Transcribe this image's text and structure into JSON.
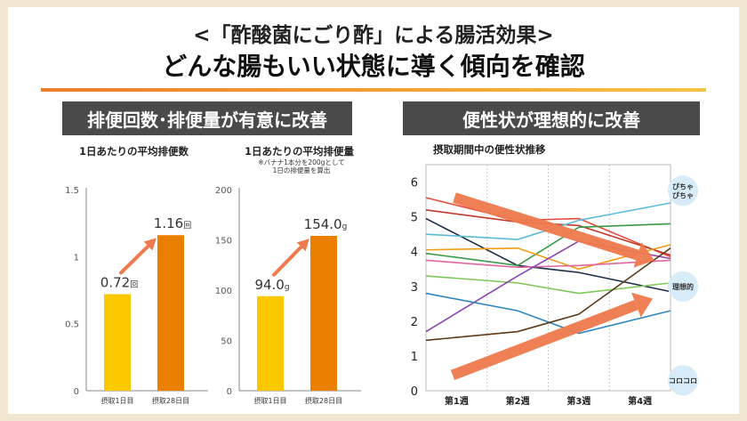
{
  "header": {
    "title_line1": "<「酢酸菌にごり酢」による腸活効果>",
    "title_line2": "どんな腸もいい状態に導く傾向を確認"
  },
  "sections": {
    "left": "排便回数･排便量が有意に改善",
    "right": "便性状が理想的に改善"
  },
  "colors": {
    "bar_day1": "#fcc800",
    "bar_day28": "#eb7f00",
    "arrow": "#ef7a4d",
    "header_bg": "#4a4a4a"
  },
  "chart_data": [
    {
      "type": "bar",
      "title": "1日あたりの平均排便数",
      "categories": [
        "摂取1日目",
        "摂取28日目"
      ],
      "values": [
        0.72,
        1.16
      ],
      "value_labels": [
        "0.72",
        "1.16"
      ],
      "unit": "回",
      "ylim": [
        0,
        1.5
      ],
      "yticks": [
        0,
        0.5,
        1,
        1.5
      ],
      "ytick_labels": [
        "0",
        "0.5",
        "1",
        "1.5"
      ]
    },
    {
      "type": "bar",
      "title": "1日あたりの平均排便量",
      "note_lines": [
        "※バナナ1本分を200gとして",
        "1日の排便量を算出"
      ],
      "categories": [
        "摂取1日目",
        "摂取28日目"
      ],
      "values": [
        94.0,
        154.0
      ],
      "value_labels": [
        "94.0",
        "154.0"
      ],
      "unit": "g",
      "ylim": [
        0,
        200
      ],
      "yticks": [
        0,
        50,
        100,
        150,
        200
      ],
      "ytick_labels": [
        "0",
        "50",
        "100",
        "150",
        "200"
      ]
    },
    {
      "type": "line",
      "title": "摂取期間中の便性状推移",
      "categories": [
        "第1週",
        "第2週",
        "第3週",
        "第4週"
      ],
      "ylim": [
        0,
        6.5
      ],
      "yticks": [
        0,
        1,
        2,
        3,
        4,
        5,
        6
      ],
      "ytick_labels": [
        "0",
        "1",
        "2",
        "3",
        "4",
        "5",
        "6"
      ],
      "grid": "vertical",
      "zone_labels": [
        {
          "text": "ぴちゃぴちゃ",
          "lines": [
            "ぴちゃ",
            "ぴちゃ"
          ],
          "y": 5.75
        },
        {
          "text": "理想的",
          "lines": [
            "理想的"
          ],
          "y": 3.0
        },
        {
          "text": "コロコロ",
          "lines": [
            "コロコロ"
          ],
          "y": 0.3
        }
      ],
      "series": [
        {
          "color": "#e8493a",
          "values": [
            5.55,
            4.9,
            4.95,
            3.85
          ]
        },
        {
          "color": "#c0392b",
          "values": [
            5.2,
            4.85,
            4.75,
            3.9
          ]
        },
        {
          "color": "#1c2e4a",
          "values": [
            4.95,
            3.6,
            3.4,
            2.85
          ]
        },
        {
          "color": "#5bbbd9",
          "values": [
            4.5,
            4.35,
            4.9,
            5.4
          ]
        },
        {
          "color": "#3a9a48",
          "values": [
            3.95,
            3.6,
            4.7,
            4.8
          ]
        },
        {
          "color": "#f39c12",
          "values": [
            4.05,
            4.1,
            3.5,
            4.2
          ]
        },
        {
          "color": "#e066a0",
          "values": [
            3.75,
            3.55,
            3.6,
            3.75
          ]
        },
        {
          "color": "#7ec85a",
          "values": [
            3.3,
            3.1,
            2.8,
            3.1
          ]
        },
        {
          "color": "#8e44ad",
          "values": [
            1.7,
            3.3,
            4.3,
            3.8
          ]
        },
        {
          "color": "#2e86c1",
          "values": [
            2.8,
            2.3,
            1.65,
            2.3
          ]
        },
        {
          "color": "#5d3a1a",
          "values": [
            1.45,
            1.7,
            2.2,
            4.1
          ]
        }
      ]
    }
  ]
}
